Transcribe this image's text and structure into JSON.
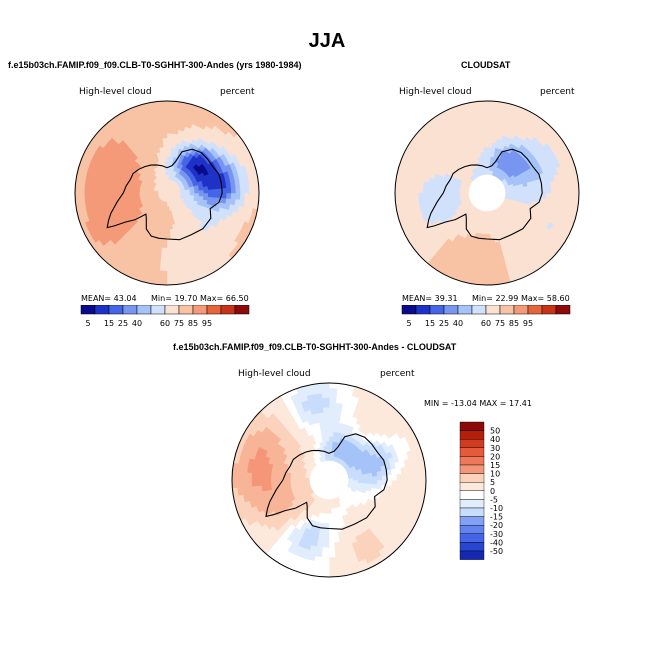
{
  "figure": {
    "title": "JJA"
  },
  "colors": {
    "abs_scale": [
      "#0a0a8c",
      "#1e32c8",
      "#4664e6",
      "#7896f0",
      "#a5c3f8",
      "#d2e1fb",
      "#fbe1d2",
      "#f8c3a5",
      "#f59a78",
      "#e6643c",
      "#c83219",
      "#8c0a0a"
    ],
    "diff_scale": [
      "#0a0a8c",
      "#1428b4",
      "#2846d2",
      "#4664e6",
      "#6482f0",
      "#82a0f5",
      "#a5c3f8",
      "#c8dcfb",
      "#e1ecfd",
      "#ffffff",
      "#fde8dc",
      "#fbd2bc",
      "#f8b496",
      "#f59678",
      "#f0785a",
      "#e65a3c",
      "#d23c1e",
      "#b41e0a",
      "#8c0a0a"
    ],
    "land": "#ffffff",
    "coast": "#000000"
  },
  "chart_data": [
    {
      "type": "heatmap",
      "title": "f.e15b03ch.FAMIP.f09_f09.CLB-T0-SGHHT-300-Andes (yrs 1980-1984)",
      "variable": "High-level cloud",
      "units": "percent",
      "projection": "south-polar-stereographic",
      "mean": "43.04",
      "min": "19.70",
      "max": "66.50",
      "mean_label": "MEAN=",
      "min_label": "Min=",
      "max_label": "Max=",
      "legend_ticks": [
        "5",
        "15",
        "25",
        "40",
        "60",
        "75",
        "85",
        "95"
      ],
      "fields": [
        {
          "lon": 110,
          "lat": -68,
          "value": 18,
          "spread": 9
        },
        {
          "lon": 140,
          "lat": -72,
          "value": 22,
          "spread": 7
        },
        {
          "lon": 90,
          "lat": -64,
          "value": 28,
          "spread": 7
        },
        {
          "lon": 260,
          "lat": -66,
          "value": 55,
          "spread": 11
        },
        {
          "lon": 300,
          "lat": -60,
          "value": 52,
          "spread": 10
        },
        {
          "lon": 230,
          "lat": -60,
          "value": 48,
          "spread": 8
        },
        {
          "lon": 20,
          "lat": -58,
          "value": 36,
          "spread": 9
        },
        {
          "lon": 50,
          "lat": -66,
          "value": 35,
          "spread": 8
        },
        {
          "lon": 180,
          "lat": -80,
          "value": 38,
          "spread": 10
        }
      ],
      "base_value": 42
    },
    {
      "type": "heatmap",
      "title": "CLOUDSAT",
      "variable": "High-level cloud",
      "units": "percent",
      "projection": "south-polar-stereographic",
      "mean": "39.31",
      "min": "22.99",
      "max": "58.60",
      "mean_label": "MEAN=",
      "min_label": "Min=",
      "max_label": "Max=",
      "legend_ticks": [
        "5",
        "15",
        "25",
        "40",
        "60",
        "75",
        "85",
        "95"
      ],
      "fields": [
        {
          "lon": 120,
          "lat": -68,
          "value": 24,
          "spread": 10
        },
        {
          "lon": 150,
          "lat": -74,
          "value": 26,
          "spread": 7
        },
        {
          "lon": 300,
          "lat": -62,
          "value": 34,
          "spread": 10
        },
        {
          "lon": 270,
          "lat": -70,
          "value": 30,
          "spread": 9
        },
        {
          "lon": 200,
          "lat": -62,
          "value": 36,
          "spread": 9
        },
        {
          "lon": 340,
          "lat": -58,
          "value": 50,
          "spread": 7
        },
        {
          "lon": 60,
          "lat": -58,
          "value": 32,
          "spread": 9
        }
      ],
      "base_value": 40,
      "missing_cap_lat": -82
    },
    {
      "type": "heatmap",
      "title": "f.e15b03ch.FAMIP.f09_f09.CLB-T0-SGHHT-300-Andes - CLOUDSAT",
      "variable": "High-level cloud",
      "units": "percent",
      "projection": "south-polar-stereographic",
      "min": "-13.04",
      "max": "17.41",
      "minmax_text": "MIN = -13.04 MAX =  17.41",
      "legend_ticks": [
        "50",
        "40",
        "30",
        "20",
        "15",
        "10",
        "5",
        "0",
        "-5",
        "-10",
        "-15",
        "-20",
        "-30",
        "-40",
        "-50"
      ],
      "fields": [
        {
          "lon": 270,
          "lat": -60,
          "value": 14,
          "spread": 10
        },
        {
          "lon": 240,
          "lat": -58,
          "value": 10,
          "spread": 8
        },
        {
          "lon": 300,
          "lat": -70,
          "value": 8,
          "spread": 8
        },
        {
          "lon": 30,
          "lat": -58,
          "value": 6,
          "spread": 8
        },
        {
          "lon": 90,
          "lat": -60,
          "value": 5,
          "spread": 8
        },
        {
          "lon": 140,
          "lat": -62,
          "value": 4,
          "spread": 8
        },
        {
          "lon": 110,
          "lat": -70,
          "value": -8,
          "spread": 7
        },
        {
          "lon": 160,
          "lat": -76,
          "value": -6,
          "spread": 6
        },
        {
          "lon": 340,
          "lat": -66,
          "value": -4,
          "spread": 7
        },
        {
          "lon": 190,
          "lat": -58,
          "value": -3,
          "spread": 7
        }
      ],
      "base_value": 2,
      "missing_cap_lat": -82
    }
  ]
}
